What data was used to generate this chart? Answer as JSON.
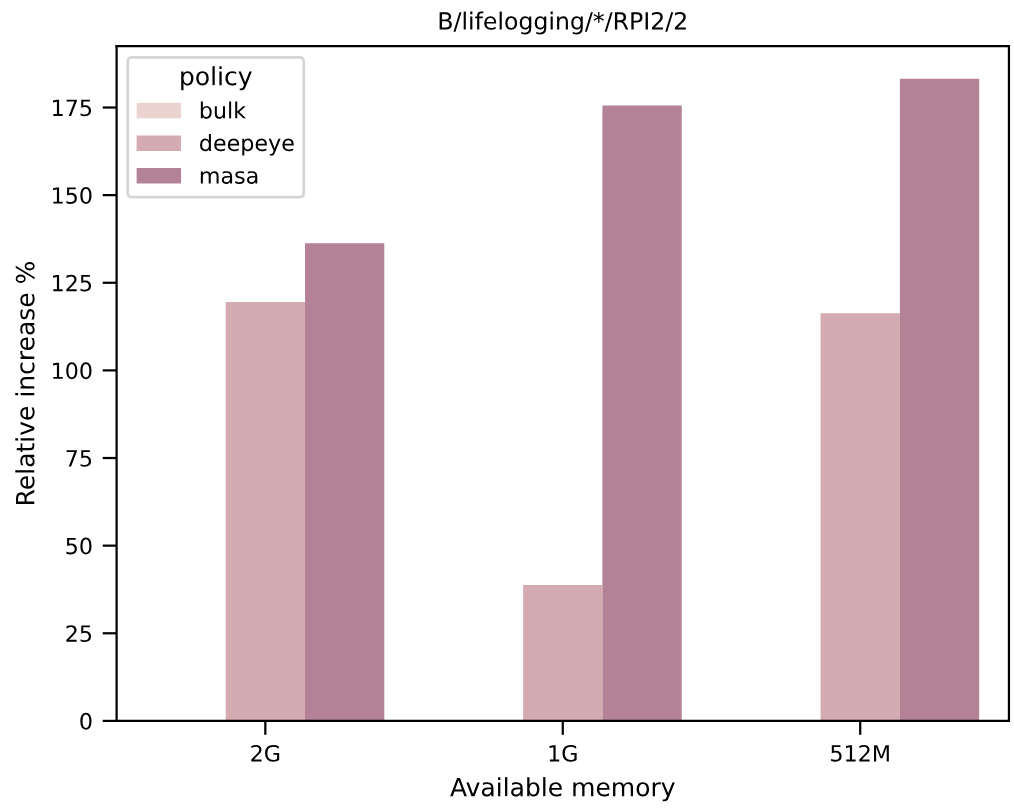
{
  "chart_data": {
    "type": "bar",
    "title": "B/lifelogging/*/RPI2/2",
    "xlabel": "Available memory",
    "ylabel": "Relative increase %",
    "legend_title": "policy",
    "categories": [
      "2G",
      "1G",
      "512M"
    ],
    "series": [
      {
        "name": "bulk",
        "color": "#ebd3d0",
        "values": [
          0,
          0,
          0
        ]
      },
      {
        "name": "deepeye",
        "color": "#d4abb0",
        "values": [
          119.5,
          38.8,
          116.3
        ]
      },
      {
        "name": "masa",
        "color": "#b38297",
        "values": [
          136.3,
          175.6,
          183.2
        ]
      }
    ],
    "ylim": [
      0,
      192.5
    ],
    "yticks": [
      0,
      25,
      50,
      75,
      100,
      125,
      150,
      175
    ],
    "grid": false,
    "legend": "top left"
  }
}
